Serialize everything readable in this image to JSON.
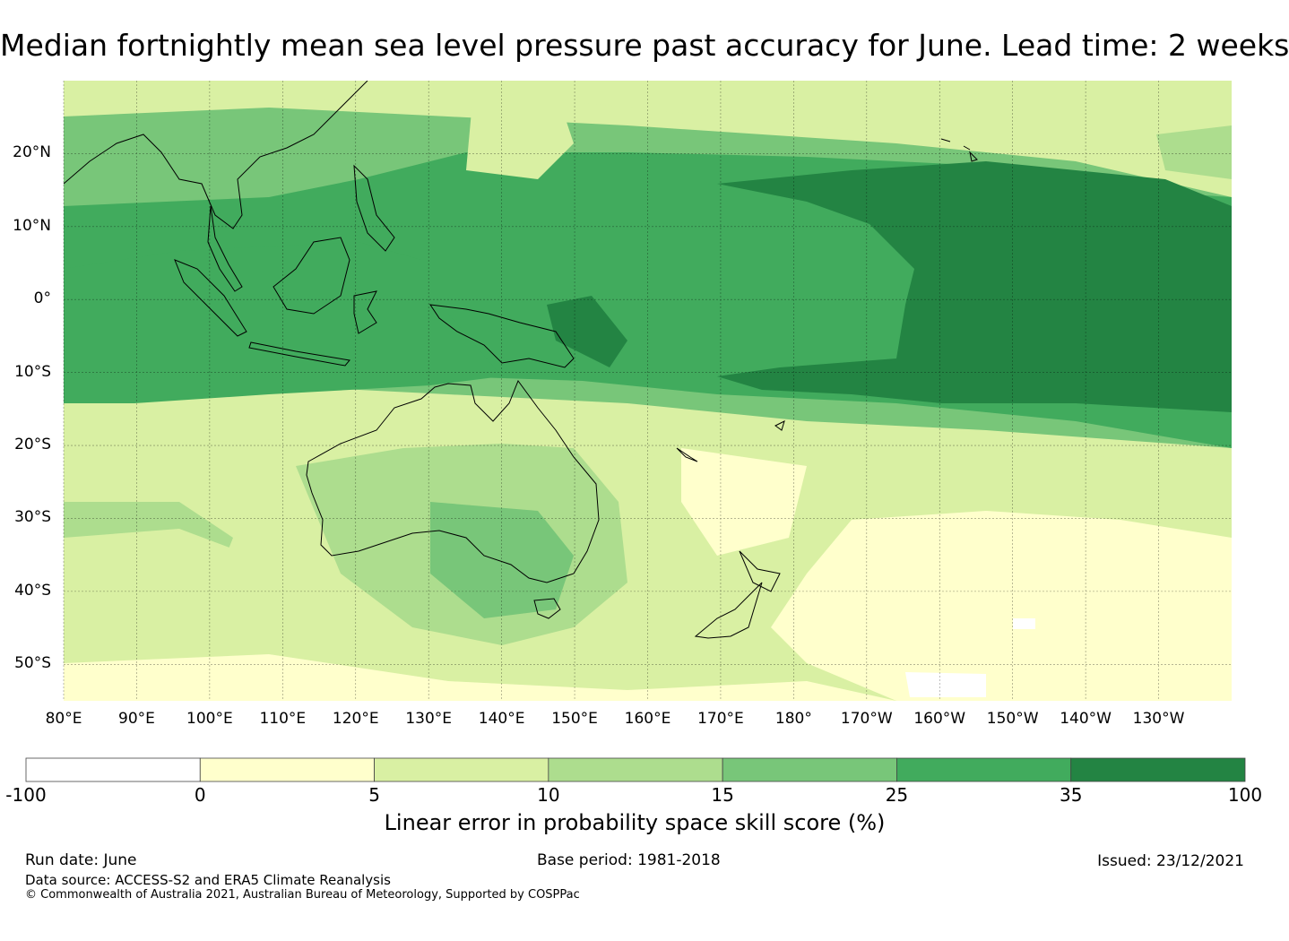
{
  "title": "Median fortnightly mean sea level pressure past accuracy for June. Lead time: 2 weeks",
  "map": {
    "region": "Western and South Pacific, Australia, Maritime Continent",
    "lat_labels": [
      "20°N",
      "10°N",
      "0°",
      "10°S",
      "20°S",
      "30°S",
      "40°S",
      "50°S"
    ],
    "lon_labels": [
      "80°E",
      "90°E",
      "100°E",
      "110°E",
      "120°E",
      "130°E",
      "140°E",
      "150°E",
      "160°E",
      "170°E",
      "180°",
      "170°W",
      "160°W",
      "150°W",
      "140°W",
      "130°W"
    ],
    "extent": {
      "lon": [
        80,
        240
      ],
      "lat": [
        -55,
        30
      ]
    }
  },
  "legend": {
    "title": "Linear error in probability space skill score (%)",
    "bounds": [
      "-100",
      "0",
      "5",
      "10",
      "15",
      "25",
      "35",
      "100"
    ],
    "colors": [
      "#ffffff",
      "#ffffcc",
      "#d9f0a3",
      "#addd8e",
      "#78c679",
      "#41ab5d",
      "#238443"
    ]
  },
  "footer": {
    "run_date": "Run date: June",
    "base_period": "Base period: 1981-2018",
    "issued": "Issued: 23/12/2021",
    "source": "Data source: ACCESS-S2 and ERA5 Climate Reanalysis",
    "copyright": "© Commonwealth of Australia 2021, Australian Bureau of Meteorology, Supported by COSPPac"
  }
}
